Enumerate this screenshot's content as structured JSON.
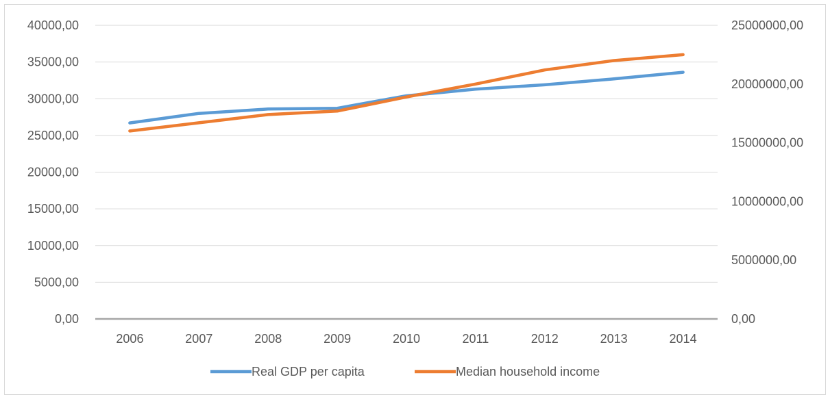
{
  "chart_data": {
    "type": "line",
    "title": "",
    "xlabel": "",
    "ylabel": "",
    "categories": [
      "2006",
      "2007",
      "2008",
      "2009",
      "2010",
      "2011",
      "2012",
      "2013",
      "2014"
    ],
    "y_left": {
      "ylim": [
        0,
        40000
      ],
      "ticks": [
        {
          "value": 0,
          "label": "0,00"
        },
        {
          "value": 5000,
          "label": "5000,00"
        },
        {
          "value": 10000,
          "label": "10000,00"
        },
        {
          "value": 15000,
          "label": "15000,00"
        },
        {
          "value": 20000,
          "label": "20000,00"
        },
        {
          "value": 25000,
          "label": "25000,00"
        },
        {
          "value": 30000,
          "label": "30000,00"
        },
        {
          "value": 35000,
          "label": "35000,00"
        },
        {
          "value": 40000,
          "label": "40000,00"
        }
      ]
    },
    "y_right": {
      "ylim": [
        0,
        25000000
      ],
      "ticks": [
        {
          "value": 0,
          "label": "0,00"
        },
        {
          "value": 5000000,
          "label": "5000000,00"
        },
        {
          "value": 10000000,
          "label": "10000000,00"
        },
        {
          "value": 15000000,
          "label": "15000000,00"
        },
        {
          "value": 20000000,
          "label": "20000000,00"
        },
        {
          "value": 25000000,
          "label": "25000000,00"
        }
      ]
    },
    "grid": true,
    "legend_position": "bottom",
    "series": [
      {
        "name": "Real GDP per capita",
        "axis": "left",
        "color": "#5b9bd5",
        "values": [
          26700,
          28000,
          28600,
          28700,
          30400,
          31300,
          31900,
          32700,
          33600
        ]
      },
      {
        "name": "Median household income",
        "axis": "right",
        "color": "#ed7d31",
        "values": [
          16000000,
          16700000,
          17400000,
          17700000,
          18900000,
          20000000,
          21200000,
          22000000,
          22500000
        ]
      }
    ]
  }
}
